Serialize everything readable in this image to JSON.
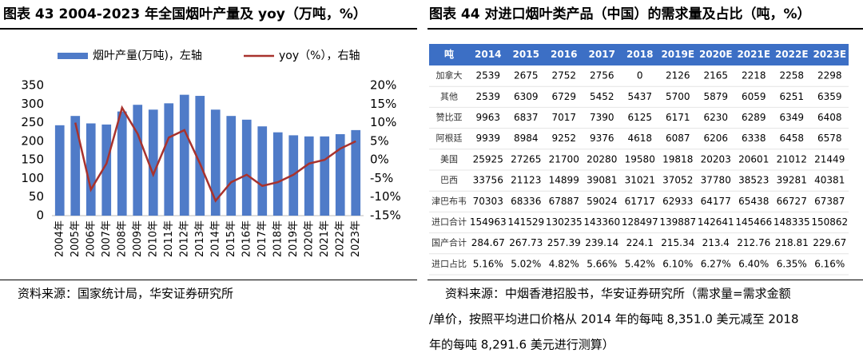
{
  "chart_data": {
    "type": "bar-line",
    "title": "图表 43 2004-2023 年全国烟叶产量及 yoy（万吨，%）",
    "categories": [
      "2004年",
      "2005年",
      "2006年",
      "2007年",
      "2008年",
      "2009年",
      "2010年",
      "2011年",
      "2012年",
      "2013年",
      "2014年",
      "2015年",
      "2016年",
      "2017年",
      "2018年",
      "2019年",
      "2020年",
      "2021年",
      "2022年",
      "2023年"
    ],
    "series": [
      {
        "name": "烟叶产量(万吨)，左轴",
        "color": "#4f7bc8",
        "kind": "bar",
        "values": [
          243,
          268,
          248,
          245,
          280,
          298,
          285,
          302,
          325,
          322,
          285,
          268,
          258,
          240,
          224,
          216,
          213,
          213,
          219,
          230
        ]
      },
      {
        "name": "yoy（%），右轴",
        "color": "#a8322d",
        "kind": "line",
        "axis": "y2",
        "values": [
          null,
          10,
          -8,
          -1,
          14,
          7,
          -4,
          6,
          8,
          -1,
          -11,
          -6,
          -4,
          -7,
          -6,
          -4,
          -1,
          0,
          3,
          5
        ]
      }
    ],
    "ylim": [
      0,
      350
    ],
    "yticks": [
      0,
      50,
      100,
      150,
      200,
      250,
      300,
      350
    ],
    "y2lim": [
      -15,
      20
    ],
    "y2ticks": [
      {
        "value": -15,
        "label": "-15%"
      },
      {
        "value": -10,
        "label": "-10%"
      },
      {
        "value": -5,
        "label": "-5%"
      },
      {
        "value": 0,
        "label": "0%"
      },
      {
        "value": 5,
        "label": "5%"
      },
      {
        "value": 10,
        "label": "10%"
      },
      {
        "value": 15,
        "label": "15%"
      },
      {
        "value": 20,
        "label": "20%"
      }
    ],
    "legend": "top"
  },
  "table": {
    "title": "图表 44 对进口烟叶类产品（中国）的需求量及占比（吨，%）",
    "header": [
      "吨",
      "2014",
      "2015",
      "2016",
      "2017",
      "2018",
      "2019E",
      "2020E",
      "2021E",
      "2022E",
      "2023E"
    ],
    "rows": [
      [
        "加拿大",
        "2539",
        "2675",
        "2752",
        "2756",
        "0",
        "2126",
        "2165",
        "2218",
        "2258",
        "2298"
      ],
      [
        "其他",
        "2539",
        "6309",
        "6729",
        "5452",
        "5437",
        "5700",
        "5879",
        "6059",
        "6251",
        "6359"
      ],
      [
        "赞比亚",
        "9963",
        "6837",
        "7017",
        "7390",
        "6125",
        "6171",
        "6230",
        "6289",
        "6349",
        "6408"
      ],
      [
        "阿根廷",
        "9939",
        "8984",
        "9252",
        "9376",
        "4618",
        "6087",
        "6206",
        "6338",
        "6458",
        "6578"
      ],
      [
        "美国",
        "25925",
        "27265",
        "21700",
        "20280",
        "19580",
        "19818",
        "20203",
        "20601",
        "21012",
        "21449"
      ],
      [
        "巴西",
        "33756",
        "21123",
        "14899",
        "39081",
        "31021",
        "37052",
        "37780",
        "38523",
        "39281",
        "40381"
      ],
      [
        "津巴布韦",
        "70303",
        "68336",
        "67887",
        "59024",
        "61717",
        "62933",
        "64177",
        "65438",
        "66727",
        "67387"
      ],
      [
        "进口合计",
        "154963",
        "141529",
        "130235",
        "143360",
        "128497",
        "139887",
        "142641",
        "145466",
        "148335",
        "150862"
      ],
      [
        "国产合计",
        "284.67",
        "267.73",
        "257.39",
        "239.14",
        "224.1",
        "215.34",
        "213.4",
        "212.76",
        "218.81",
        "229.67"
      ],
      [
        "进口占比",
        "5.16%",
        "5.02%",
        "4.82%",
        "5.66%",
        "5.42%",
        "6.10%",
        "6.27%",
        "6.40%",
        "6.35%",
        "6.16%"
      ]
    ]
  },
  "sources": {
    "left": "资料来源：国家统计局，华安证券研究所",
    "right": [
      "资料来源：中烟香港招股书，华安证券研究所（需求量=需求金额",
      "/单价，按照平均进口价格从 2014 年的每吨 8,351.0 美元减至 2018",
      "年的每吨 8,291.6 美元进行测算）"
    ]
  }
}
